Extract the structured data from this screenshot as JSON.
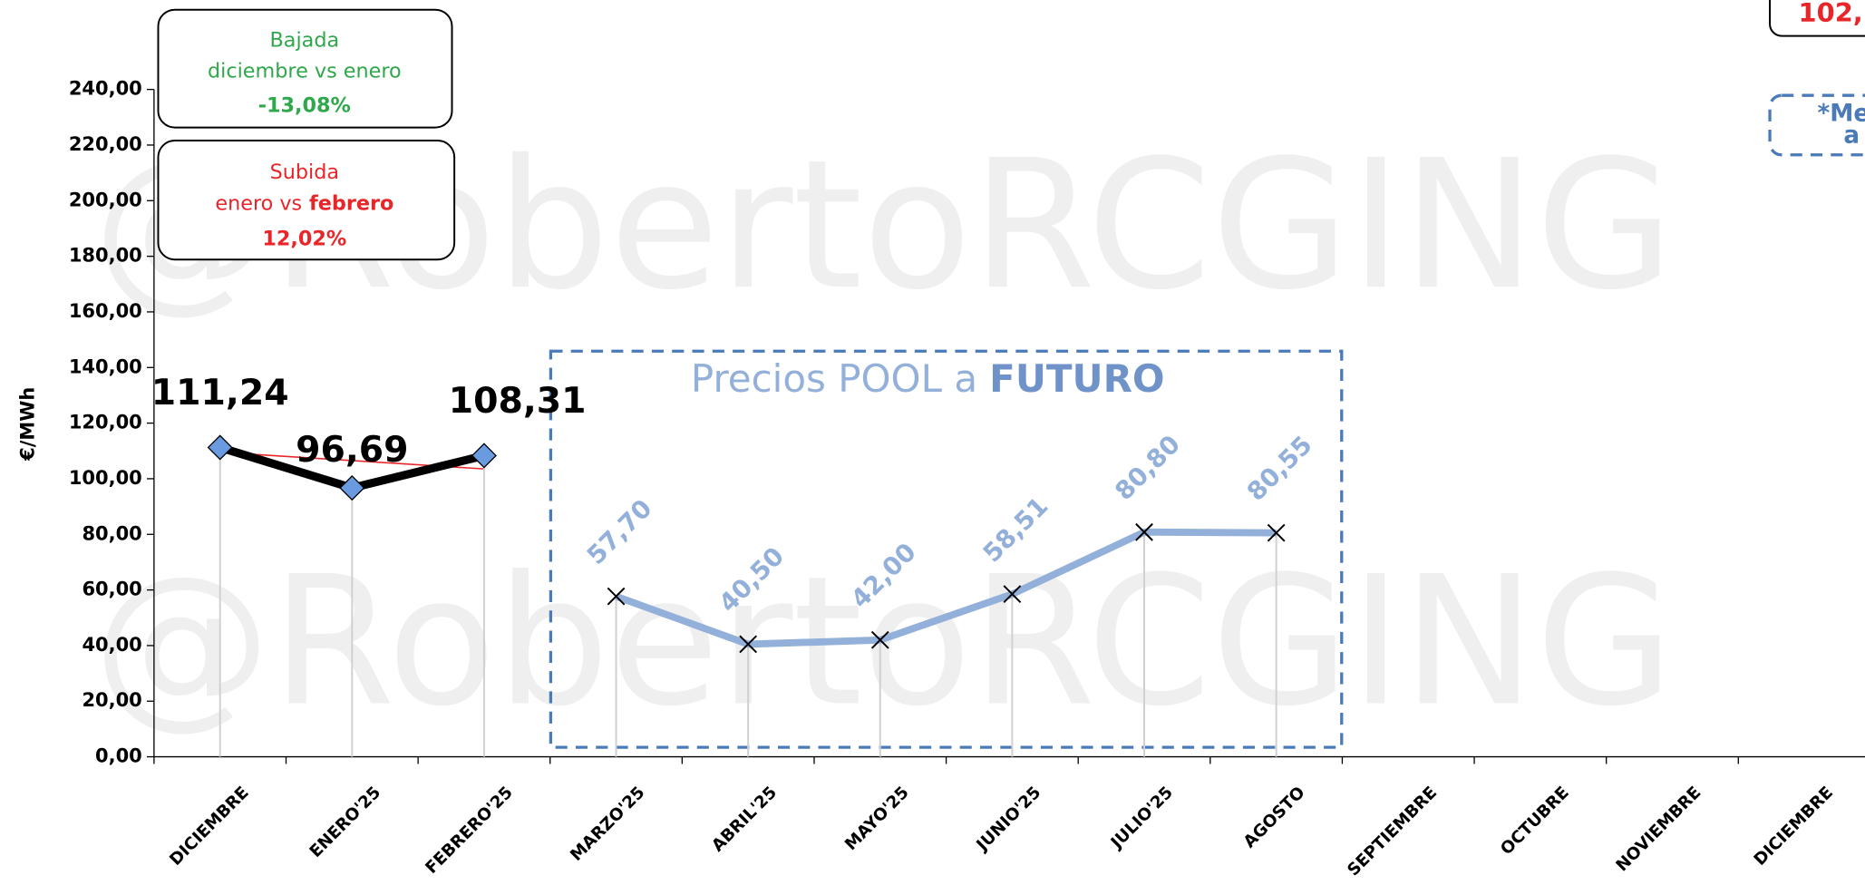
{
  "chart_data": {
    "type": "line",
    "categories": [
      "DICIEMBRE",
      "ENERO'25",
      "FEBRERO'25",
      "MARZO'25",
      "ABRIL'25",
      "MAYO'25",
      "JUNIO'25",
      "JULIO'25",
      "AGOSTO",
      "SEPTIEMBRE",
      "OCTUBRE",
      "NOVIEMBRE",
      "DICIEMBRE"
    ],
    "series": [
      {
        "color": "#000000",
        "marker_color": "#6a9be0",
        "values": [
          111.24,
          96.69,
          108.31,
          null,
          null,
          null,
          null,
          null,
          null,
          null,
          null,
          null,
          null
        ],
        "value_labels": [
          "111,24",
          "96,69",
          "108,31",
          null,
          null,
          null,
          null,
          null,
          null,
          null,
          null,
          null,
          null
        ]
      },
      {
        "color": "#93b0da",
        "values": [
          null,
          null,
          null,
          57.7,
          40.5,
          42.0,
          58.51,
          80.8,
          80.55,
          null,
          null,
          null,
          null
        ],
        "value_labels": [
          null,
          null,
          null,
          "57,70",
          "40,50",
          "42,00",
          "58,51",
          "80,80",
          "80,55",
          null,
          null,
          null,
          null
        ]
      }
    ],
    "y_label": "€/MWh",
    "ylim": [
      0,
      240
    ],
    "yticks": [
      {
        "value": 0,
        "label": "0,00"
      },
      {
        "value": 20,
        "label": "20,00"
      },
      {
        "value": 40,
        "label": "40,00"
      },
      {
        "value": 60,
        "label": "60,00"
      },
      {
        "value": 80,
        "label": "80,00"
      },
      {
        "value": 100,
        "label": "100,00"
      },
      {
        "value": 120,
        "label": "120,00"
      },
      {
        "value": 140,
        "label": "140,00"
      },
      {
        "value": 160,
        "label": "160,00"
      },
      {
        "value": 180,
        "label": "180,00"
      },
      {
        "value": 200,
        "label": "200,00"
      },
      {
        "value": 220,
        "label": "220,00"
      },
      {
        "value": 240,
        "label": "240,00"
      }
    ],
    "annotations": {
      "watermark": "@RobertoRCGING",
      "drop": {
        "line1": "Bajada",
        "line2": "diciembre vs enero",
        "value": "-13,08%"
      },
      "rise": {
        "line1": "Subida",
        "line2a": "enero vs",
        "line2b": "febrero",
        "value": "12,02%"
      },
      "future": {
        "text": "Precios POOL a",
        "bold": "FUTURO"
      },
      "corner_value": "102,",
      "corner_note": {
        "line1": "*Me",
        "line2": "a"
      }
    }
  }
}
